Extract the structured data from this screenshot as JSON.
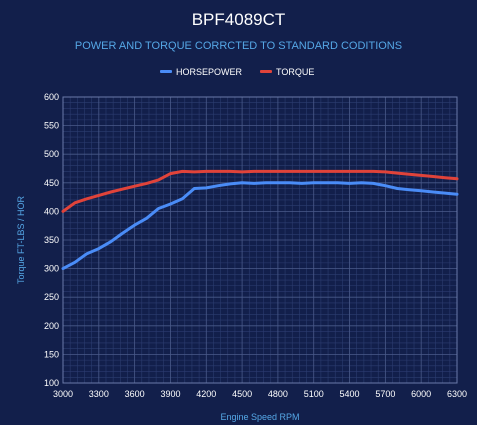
{
  "chart_data": {
    "type": "line",
    "title": "BPF4089CT",
    "subtitle": "POWER AND TORQUE CORRCTED TO STANDARD CODITIONS",
    "xlabel": "Engine Speed RPM",
    "ylabel": "Torque FT-LBS / HOR",
    "xlim": [
      3000,
      6300
    ],
    "ylim": [
      100,
      600
    ],
    "x_ticks": [
      3000,
      3300,
      3600,
      3900,
      4200,
      4500,
      4800,
      5100,
      5400,
      5700,
      6000,
      6300
    ],
    "y_ticks": [
      100,
      150,
      200,
      250,
      300,
      350,
      400,
      450,
      500,
      550,
      600
    ],
    "grid": true,
    "legend_position": "top-center",
    "series": [
      {
        "name": "HORSEPOWER",
        "color": "#4a8cf7",
        "x": [
          3000,
          3100,
          3200,
          3300,
          3400,
          3500,
          3600,
          3700,
          3800,
          3900,
          4000,
          4100,
          4200,
          4300,
          4400,
          4500,
          4600,
          4700,
          4800,
          4900,
          5000,
          5100,
          5200,
          5300,
          5400,
          5500,
          5600,
          5700,
          5800,
          5900,
          6000,
          6100,
          6200,
          6300
        ],
        "values": [
          300,
          311,
          326,
          335,
          347,
          362,
          376,
          388,
          405,
          413,
          422,
          440,
          441,
          445,
          448,
          450,
          449,
          450,
          450,
          450,
          449,
          450,
          450,
          450,
          449,
          450,
          449,
          445,
          440,
          438,
          436,
          434,
          432,
          430
        ]
      },
      {
        "name": "TORQUE",
        "color": "#e0433a",
        "x": [
          3000,
          3100,
          3200,
          3300,
          3400,
          3500,
          3600,
          3700,
          3800,
          3900,
          4000,
          4100,
          4200,
          4300,
          4400,
          4500,
          4600,
          4700,
          4800,
          4900,
          5000,
          5100,
          5200,
          5300,
          5400,
          5500,
          5600,
          5700,
          5800,
          5900,
          6000,
          6100,
          6200,
          6300
        ],
        "values": [
          400,
          415,
          422,
          428,
          434,
          439,
          444,
          449,
          455,
          466,
          470,
          469,
          470,
          470,
          470,
          469,
          470,
          470,
          470,
          470,
          470,
          470,
          470,
          470,
          470,
          470,
          470,
          469,
          467,
          465,
          463,
          461,
          459,
          457
        ]
      }
    ]
  }
}
